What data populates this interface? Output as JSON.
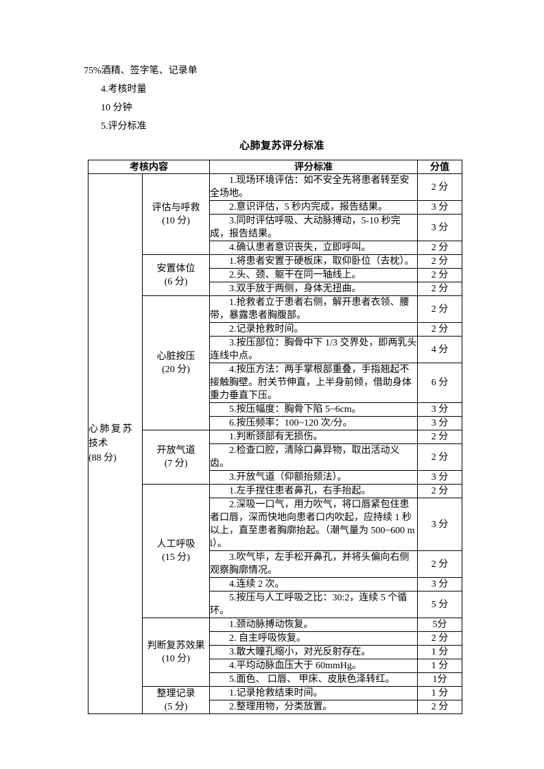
{
  "page": {
    "intro_lines": [
      "75%酒精、签字笔、记录单",
      "4.考核时量",
      "10 分钟",
      "5.评分标准"
    ],
    "table_title": "心肺复苏评分标准"
  },
  "table": {
    "headers": {
      "content": "考核内容",
      "standard": "评分标准",
      "score": "分值"
    },
    "main_category": {
      "lines": [
        "心肺复苏",
        "技术",
        "(88 分)"
      ]
    },
    "sections": [
      {
        "name": "评估与呼救",
        "score_label": "(10 分)",
        "items": [
          {
            "text": "1.现场环境评估：如不安全先将患者转至安全场地。",
            "score": "2 分"
          },
          {
            "text": "2.意识评估，5 秒内完成，报告结果。",
            "score": "3 分"
          },
          {
            "text": "3.同时评估呼吸、大动脉搏动，5-10 秒完成，报告结果。",
            "score": "3 分"
          },
          {
            "text": "4.确认患者意识丧失，立即呼叫。",
            "score": "2 分"
          }
        ]
      },
      {
        "name": "安置体位",
        "score_label": "(6 分)",
        "items": [
          {
            "text": "1.将患者安置于硬板床，取仰卧位（去枕）。",
            "score": "2 分"
          },
          {
            "text": "2.头、颈、躯干在同一轴线上。",
            "score": "2 分"
          },
          {
            "text": "3.双手放于两侧，身体无扭曲。",
            "score": "2 分"
          }
        ]
      },
      {
        "name": "心脏按压",
        "score_label": "(20 分)",
        "items": [
          {
            "text": "1.抢救者立于患者右侧，解开患者衣领、腰带，暴露患者胸腹部。",
            "score": "2 分"
          },
          {
            "text": "2.记录抢救时间。",
            "score": "2 分"
          },
          {
            "text": "3.按压部位：胸骨中下 1/3 交界处，即两乳头连线中点。",
            "score": "4 分"
          },
          {
            "text": "4.按压方法：两手掌根部重叠，手指翘起不接触胸壁。肘关节伸直，上半身前倾，借助身体重力垂直下压。",
            "score": "6 分"
          },
          {
            "text": "5.按压幅度：胸骨下陷 5~6cm。",
            "score": "3 分"
          },
          {
            "text": "6.按压频率：100~120 次/分。",
            "score": "3 分"
          }
        ]
      },
      {
        "name": "开放气道",
        "score_label": "(7 分)",
        "items": [
          {
            "text": "1.判断颈部有无损伤。",
            "score": "2 分"
          },
          {
            "text": "2.检查口腔，清除口鼻异物，取出活动义齿。",
            "score": "2 分"
          },
          {
            "text": "3.开放气道（仰额抬颏法）。",
            "score": "3 分"
          }
        ]
      },
      {
        "name": "人工呼吸",
        "score_label": "(15 分)",
        "items": [
          {
            "text": "1.左手捏住患者鼻孔，右手抬起。",
            "score": "2 分"
          },
          {
            "text": "2.深吸一口气，用力吹气，将口唇紧包住患者口唇，深而快地向患者口内吹起，应持续 1 秒以上，直至患者胸廓抬起。（潮气量为 500~600 ml）。",
            "score": "3 分"
          },
          {
            "text": "3.吹气毕，左手松开鼻孔，并将头偏向右侧观察胸廓情况。",
            "score": "2 分"
          },
          {
            "text": "4.连续 2 次。",
            "score": "3 分"
          },
          {
            "text": "5.按压与人工呼吸之比：30:2，连续 5 个循环。",
            "score": "5 分"
          }
        ]
      },
      {
        "name": "判断复苏效果",
        "score_label": "(10 分)",
        "items": [
          {
            "text": "1.颈动脉搏动恢复。",
            "score": "5分"
          },
          {
            "text": "2. 自主呼吸恢复。",
            "score": "2 分"
          },
          {
            "text": "3.散大瞳孔缩小，对光反射存在。",
            "score": "1 分"
          },
          {
            "text": "4.平均动脉血压大于 60mmHg。",
            "score": "1 分"
          },
          {
            "text": "5.面色、 口唇、 甲床、皮肤色泽转红。",
            "score": "1分"
          }
        ]
      },
      {
        "name": "整理记录",
        "score_label": "(5 分)",
        "items": [
          {
            "text": "1.记录抢救结束时间。",
            "score": "1 分"
          },
          {
            "text": "2.整理用物，分类放置。",
            "score": "2 分"
          }
        ]
      }
    ]
  }
}
